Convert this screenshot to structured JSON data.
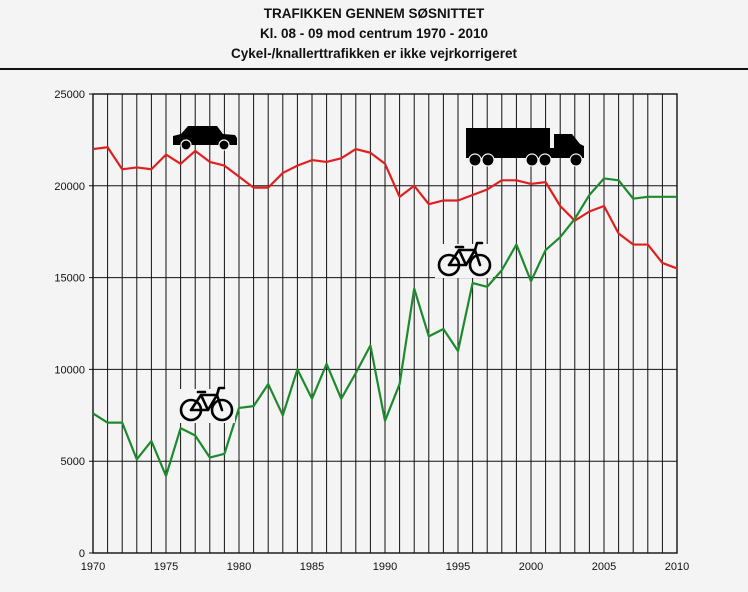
{
  "chart_data": {
    "type": "line",
    "title": "TRAFIKKEN GENNEM SØSNITTET",
    "subtitle": "Kl. 08 - 09 mod centrum 1970 - 2010",
    "note": "Cykel-/knallerttrafikken er ikke vejrkorrigeret",
    "xlabel": "",
    "ylabel": "",
    "xlim": [
      1970,
      2010
    ],
    "ylim": [
      0,
      25000
    ],
    "x_ticks": [
      "1970",
      "1975",
      "1980",
      "1985",
      "1990",
      "1995",
      "2000",
      "2005",
      "2010"
    ],
    "y_ticks": [
      "0",
      "5000",
      "10000",
      "15000",
      "20000",
      "25000"
    ],
    "grid": true,
    "legend": "icons",
    "colors": {
      "motor": "#e02020",
      "bicycle": "#1e8a2e",
      "grid": "#111111"
    },
    "x": [
      1970,
      1971,
      1972,
      1973,
      1974,
      1975,
      1976,
      1977,
      1978,
      1979,
      1980,
      1981,
      1982,
      1983,
      1984,
      1985,
      1986,
      1987,
      1988,
      1989,
      1990,
      1991,
      1992,
      1993,
      1994,
      1995,
      1996,
      1997,
      1998,
      1999,
      2000,
      2001,
      2002,
      2003,
      2004,
      2005,
      2006,
      2007,
      2008,
      2009,
      2010
    ],
    "series": [
      {
        "icon": "car-and-truck-icon",
        "color": "#e02020",
        "values": [
          22000,
          22100,
          20900,
          21000,
          20900,
          21700,
          21200,
          21900,
          21300,
          21100,
          20500,
          19900,
          19900,
          20700,
          21100,
          21400,
          21300,
          21500,
          22000,
          21800,
          21200,
          19400,
          20000,
          19000,
          19200,
          19200,
          19500,
          19800,
          20300,
          20300,
          20100,
          20200,
          18900,
          18100,
          18600,
          18900,
          17400,
          16800,
          16800,
          15800,
          15500
        ]
      },
      {
        "icon": "bicycle-icon",
        "color": "#1e8a2e",
        "values": [
          7600,
          7100,
          7100,
          5100,
          6100,
          4200,
          6800,
          6400,
          5200,
          5400,
          7900,
          8000,
          9200,
          7500,
          10000,
          8400,
          10300,
          8400,
          9800,
          11300,
          7200,
          9200,
          14400,
          11800,
          12200,
          11000,
          14700,
          14500,
          15400,
          16800,
          14800,
          16500,
          17200,
          18200,
          19500,
          20400,
          20300,
          19300,
          19400,
          19400,
          19400
        ]
      }
    ]
  }
}
